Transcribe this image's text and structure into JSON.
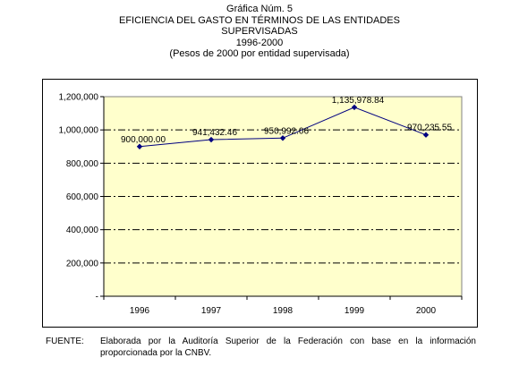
{
  "header": {
    "line1": "Gráfica Núm. 5",
    "line2": "EFICIENCIA DEL GASTO EN TÉRMINOS DE LAS ENTIDADES",
    "line3": "SUPERVISADAS",
    "line4": "1996-2000",
    "line5": "(Pesos de 2000 por entidad supervisada)"
  },
  "chart_data": {
    "type": "line",
    "categories": [
      "1996",
      "1997",
      "1998",
      "1999",
      "2000"
    ],
    "series": [
      {
        "values": [
          900000.0,
          941432.46,
          950992.06,
          1135978.84,
          970235.55
        ],
        "data_labels": [
          "900,000.00",
          "941,432.46",
          "950,992.06",
          "1,135,978.84",
          "970,235.55"
        ]
      }
    ],
    "y_ticks": [
      {
        "value": 0,
        "label": "-"
      },
      {
        "value": 200000,
        "label": "200,000"
      },
      {
        "value": 400000,
        "label": "400,000"
      },
      {
        "value": 600000,
        "label": "600,000"
      },
      {
        "value": 800000,
        "label": "800,000"
      },
      {
        "value": 1000000,
        "label": "1,000,000"
      },
      {
        "value": 1200000,
        "label": "1,200,000"
      }
    ],
    "ylim": [
      0,
      1200000
    ],
    "grid": true,
    "colors": {
      "plot_bg": "#FFFFCC",
      "line": "#000080",
      "marker": "#000080",
      "grid": "#000000"
    }
  },
  "source": {
    "label": "FUENTE:",
    "text": "Elaborada por la Auditoría Superior de la Federación con base en la información proporcionada por la CNBV."
  }
}
